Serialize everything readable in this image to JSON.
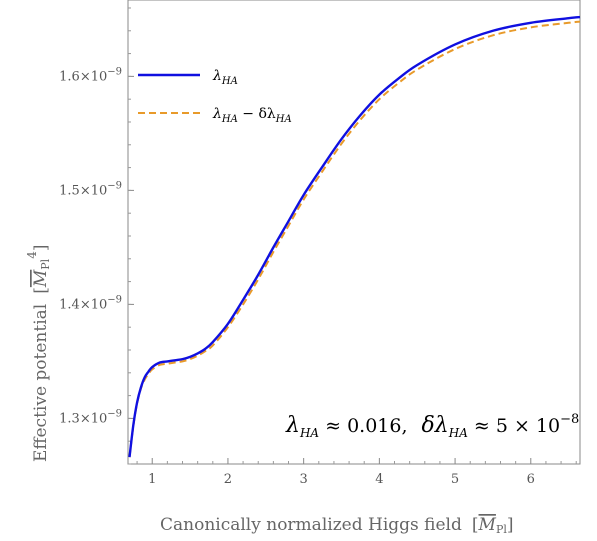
{
  "chart_data": {
    "type": "line",
    "title": "",
    "xlabel": "Canonically normalized Higgs field",
    "xlabel_unit": "M",
    "xlabel_unit_sub": "Pl",
    "ylabel": "Effective potential",
    "ylabel_unit": "M",
    "ylabel_unit_sub": "Pl",
    "ylabel_unit_power": "4",
    "xlim": [
      0.68,
      6.65
    ],
    "ylim": [
      1.26e-09,
      1.667e-09
    ],
    "x_ticks": [
      1,
      2,
      3,
      4,
      5,
      6
    ],
    "x_tick_labels": [
      "1",
      "2",
      "3",
      "4",
      "5",
      "6"
    ],
    "y_ticks": [
      1.3e-09,
      1.4e-09,
      1.5e-09,
      1.6e-09
    ],
    "y_tick_labels": [
      {
        "mantissa": "1.3",
        "base": "×10",
        "exp": "−9"
      },
      {
        "mantissa": "1.4",
        "base": "×10",
        "exp": "−9"
      },
      {
        "mantissa": "1.5",
        "base": "×10",
        "exp": "−9"
      },
      {
        "mantissa": "1.6",
        "base": "×10",
        "exp": "−9"
      }
    ],
    "grid": false,
    "legend_position": "top-left",
    "series": [
      {
        "name": "λ_HA",
        "label_main": "λ",
        "label_sub": "HA",
        "color": "#1010e0",
        "style": "solid",
        "x": [
          0.7,
          0.75,
          0.8,
          0.85,
          0.9,
          0.95,
          1.0,
          1.1,
          1.2,
          1.3,
          1.4,
          1.5,
          1.6,
          1.7,
          1.8,
          2.0,
          2.2,
          2.4,
          2.6,
          2.8,
          3.0,
          3.25,
          3.5,
          3.75,
          4.0,
          4.25,
          4.5,
          5.0,
          5.5,
          6.0,
          6.5,
          6.65
        ],
        "y": [
          1.266e-09,
          1.294e-09,
          1.314e-09,
          1.327e-09,
          1.336e-09,
          1.341e-09,
          1.345e-09,
          1.349e-09,
          1.35e-09,
          1.351e-09,
          1.352e-09,
          1.354e-09,
          1.357e-09,
          1.361e-09,
          1.367e-09,
          1.383e-09,
          1.404e-09,
          1.426e-09,
          1.45e-09,
          1.473e-09,
          1.496e-09,
          1.521e-09,
          1.545e-09,
          1.566e-09,
          1.584e-09,
          1.598e-09,
          1.61e-09,
          1.628e-09,
          1.64e-09,
          1.647e-09,
          1.651e-09,
          1.652e-09
        ]
      },
      {
        "name": "λ_HA − δλ_HA",
        "label_main": "λ",
        "label_sub": "HA",
        "label_minus": " − δλ",
        "label_sub2": "HA",
        "color": "#e89a2a",
        "style": "dashed",
        "x": [
          0.7,
          0.75,
          0.8,
          0.85,
          0.9,
          0.95,
          1.0,
          1.1,
          1.2,
          1.3,
          1.4,
          1.5,
          1.6,
          1.7,
          1.8,
          2.0,
          2.2,
          2.4,
          2.6,
          2.8,
          3.0,
          3.25,
          3.5,
          3.75,
          4.0,
          4.25,
          4.5,
          5.0,
          5.5,
          6.0,
          6.5,
          6.65
        ],
        "y": [
          1.266e-09,
          1.293e-09,
          1.313e-09,
          1.326e-09,
          1.334e-09,
          1.339e-09,
          1.343e-09,
          1.347e-09,
          1.348e-09,
          1.349e-09,
          1.35e-09,
          1.352e-09,
          1.355e-09,
          1.359e-09,
          1.364e-09,
          1.38e-09,
          1.4e-09,
          1.422e-09,
          1.446e-09,
          1.469e-09,
          1.492e-09,
          1.517e-09,
          1.541e-09,
          1.562e-09,
          1.58e-09,
          1.594e-09,
          1.606e-09,
          1.624e-09,
          1.636e-09,
          1.643e-09,
          1.647e-09,
          1.648e-09
        ]
      }
    ],
    "annotation": {
      "lambda": "λ",
      "lambda_sub": "HA",
      "lambda_value": " ≈ 0.016,",
      "delta_lambda": "δλ",
      "delta_lambda_sub": "HA",
      "delta_value": " ≈ 5 × 10",
      "delta_exp": "−8"
    }
  }
}
